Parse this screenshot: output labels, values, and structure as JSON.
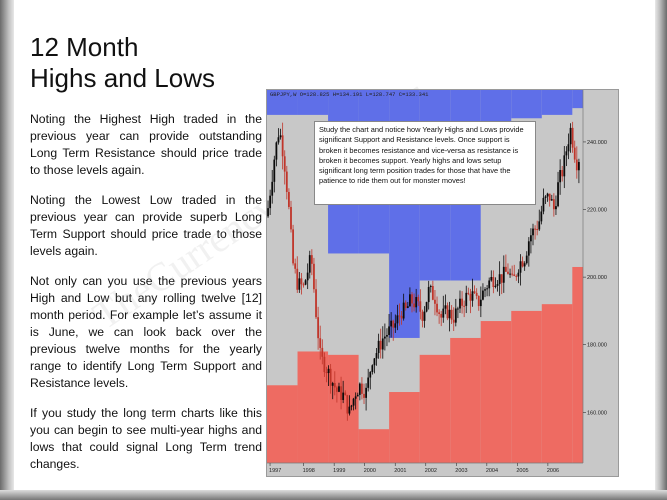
{
  "slide": {
    "title_line1": "12 Month",
    "title_line2": "Highs and Lows",
    "paragraphs": [
      "Noting the Highest High traded in the previous year can provide outstanding Long Term Resistance should price trade to those levels again.",
      "Noting the Lowest Low traded in the previous year can provide superb Long Term Support should price trade to those levels again.",
      "Not only can you use the previous years High and Low but any rolling twelve [12] month period. For example let’s assume it is June, we can look back over the previous twelve months for the yearly range to identify Long Term Support and Resistance levels.",
      "If you study the long term charts like this you can begin to see multi-year highs and lows that could signal Long Term trend changes."
    ],
    "watermark": "TheCurrencyTraderFund"
  },
  "chart_data": {
    "type": "candlestick",
    "header": "GBPJPY,W  O=128.825 H=134.191 L=128.747 C=133.341",
    "annotation": "Study the chart and notice how Yearly Highs and Lows provide significant Support and Resistance levels.  Once support is broken it becomes resistance and vice-versa as resistance is broken it becomes support.  Yearly highs and lows setup significant long term position trades for those that have the patience to ride them out for monster moves!",
    "ylim": [
      145.0,
      253.0
    ],
    "xlim": [
      1997.0,
      2007.35
    ],
    "y_ticks": [
      "240.000",
      "220.000",
      "200.000",
      "180.000",
      "160.000"
    ],
    "y_tick_values": [
      240,
      220,
      200,
      180,
      160
    ],
    "x_ticks": [
      "1997",
      "1998",
      "1999",
      "2000",
      "2001",
      "2002",
      "2003",
      "2004",
      "2005",
      "2006"
    ],
    "x_tick_values": [
      1997.1,
      1998.2,
      1999.2,
      2000.2,
      2001.2,
      2002.2,
      2003.2,
      2004.2,
      2005.2,
      2006.2
    ],
    "yearly_ranges": [
      {
        "year": "1997",
        "high": 248.0,
        "low": 168.0
      },
      {
        "year": "1998",
        "high": 248.0,
        "low": 178.0
      },
      {
        "year": "1999",
        "high": 207.0,
        "low": 177.0
      },
      {
        "year": "2000",
        "high": 207.0,
        "low": 155.0
      },
      {
        "year": "2001",
        "high": 182.0,
        "low": 166.0
      },
      {
        "year": "2002",
        "high": 199.0,
        "low": 177.0
      },
      {
        "year": "2003",
        "high": 199.0,
        "low": 182.0
      },
      {
        "year": "2004",
        "high": 239.0,
        "low": 187.0
      },
      {
        "year": "2005",
        "high": 247.0,
        "low": 190.0
      },
      {
        "year": "2006",
        "high": 248.0,
        "low": 192.0
      },
      {
        "year": "2007",
        "high": 250.0,
        "low": 203.0
      }
    ],
    "price_path": [
      [
        1997.0,
        218
      ],
      [
        1997.25,
        236
      ],
      [
        1997.4,
        244
      ],
      [
        1997.55,
        236
      ],
      [
        1997.7,
        222
      ],
      [
        1997.85,
        204
      ],
      [
        1998.0,
        198
      ],
      [
        1998.2,
        197
      ],
      [
        1998.45,
        206
      ],
      [
        1998.6,
        190
      ],
      [
        1998.75,
        176
      ],
      [
        1998.9,
        174
      ],
      [
        1999.1,
        170
      ],
      [
        1999.3,
        166
      ],
      [
        1999.5,
        165
      ],
      [
        1999.7,
        160
      ],
      [
        1999.9,
        166
      ],
      [
        2000.05,
        168
      ],
      [
        2000.25,
        166
      ],
      [
        2000.45,
        176
      ],
      [
        2000.6,
        178
      ],
      [
        2000.8,
        182
      ],
      [
        2001.0,
        184
      ],
      [
        2001.2,
        186
      ],
      [
        2001.4,
        190
      ],
      [
        2001.55,
        190
      ],
      [
        2001.7,
        193
      ],
      [
        2001.9,
        192
      ],
      [
        2002.1,
        189
      ],
      [
        2002.3,
        196
      ],
      [
        2002.5,
        194
      ],
      [
        2002.7,
        188
      ],
      [
        2002.9,
        190
      ],
      [
        2003.1,
        188
      ],
      [
        2003.3,
        191
      ],
      [
        2003.5,
        194
      ],
      [
        2003.7,
        195
      ],
      [
        2003.9,
        192
      ],
      [
        2004.1,
        196
      ],
      [
        2004.3,
        199
      ],
      [
        2004.5,
        200
      ],
      [
        2004.7,
        200
      ],
      [
        2004.9,
        202
      ],
      [
        2005.05,
        198
      ],
      [
        2005.25,
        204
      ],
      [
        2005.45,
        206
      ],
      [
        2005.6,
        212
      ],
      [
        2005.75,
        214
      ],
      [
        2005.9,
        216
      ],
      [
        2006.05,
        222
      ],
      [
        2006.25,
        224
      ],
      [
        2006.4,
        220
      ],
      [
        2006.55,
        228
      ],
      [
        2006.7,
        232
      ],
      [
        2006.85,
        240
      ],
      [
        2006.95,
        244
      ],
      [
        2007.05,
        238
      ],
      [
        2007.15,
        234
      ],
      [
        2007.25,
        236
      ]
    ],
    "colors": {
      "resistance_fill": "#5f6fe8",
      "support_fill": "#ee6b62",
      "background": "#c8c8c8",
      "candle_up": "#0b0b0b",
      "candle_down": "#c0352a",
      "axis_panel": "#c8c8c8"
    }
  }
}
